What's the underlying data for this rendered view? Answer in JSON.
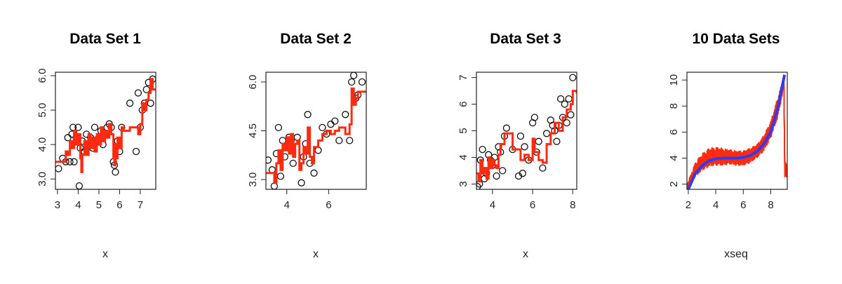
{
  "colors": {
    "fit": "#ff2a10",
    "mean": "#2b3df0",
    "points": "#111111",
    "axis": "#222222"
  },
  "chart_data": [
    {
      "type": "scatter",
      "title": "Data Set 1",
      "xlabel": "x",
      "ylabel": "",
      "xlim": [
        2.9,
        7.75
      ],
      "ylim": [
        2.7,
        6.1
      ],
      "xticks": [
        3,
        4,
        5,
        6,
        7
      ],
      "yticks": [
        3.0,
        4.0,
        5.0,
        6.0
      ],
      "ytick_labels": [
        "3.0",
        "4.0",
        "5.0",
        "6.0"
      ],
      "series": [
        {
          "kind": "points",
          "x": [
            3.05,
            3.25,
            3.4,
            3.5,
            3.6,
            3.7,
            3.75,
            3.8,
            3.9,
            4.0,
            4.05,
            4.1,
            4.2,
            4.3,
            4.4,
            4.5,
            4.6,
            4.7,
            4.8,
            5.0,
            5.1,
            5.2,
            5.4,
            5.5,
            5.6,
            5.7,
            5.75,
            5.8,
            5.9,
            6.0,
            6.1,
            6.5,
            6.8,
            6.9,
            7.0,
            7.1,
            7.2,
            7.3,
            7.4,
            7.5,
            7.6
          ],
          "y": [
            3.3,
            3.6,
            3.5,
            4.2,
            3.5,
            4.3,
            4.5,
            3.5,
            4.2,
            4.5,
            2.8,
            3.9,
            4.1,
            3.8,
            4.3,
            4.0,
            4.2,
            3.9,
            4.5,
            4.2,
            4.4,
            4.0,
            4.5,
            4.6,
            4.5,
            3.5,
            3.4,
            3.2,
            4.1,
            3.8,
            4.5,
            5.2,
            3.8,
            5.5,
            4.5,
            5.0,
            5.2,
            5.6,
            5.8,
            5.2,
            5.9
          ]
        },
        {
          "kind": "step",
          "x": [
            2.9,
            3.3,
            3.4,
            3.5,
            3.6,
            3.7,
            3.8,
            3.9,
            4.0,
            4.1,
            4.15,
            4.2,
            4.3,
            4.4,
            4.5,
            4.6,
            4.7,
            4.8,
            4.9,
            5.0,
            5.1,
            5.2,
            5.3,
            5.4,
            5.5,
            5.6,
            5.7,
            5.75,
            5.8,
            5.85,
            5.9,
            6.0,
            6.1,
            6.2,
            6.5,
            6.9,
            7.0,
            7.1,
            7.2,
            7.3,
            7.4,
            7.5,
            7.6,
            7.75
          ],
          "y": [
            3.5,
            3.5,
            3.8,
            3.7,
            4.1,
            3.9,
            4.4,
            4.0,
            4.3,
            3.6,
            3.2,
            3.7,
            4.1,
            3.7,
            4.3,
            3.9,
            4.2,
            3.8,
            4.3,
            4.0,
            4.5,
            4.1,
            4.4,
            4.2,
            4.6,
            4.3,
            3.6,
            3.4,
            4.0,
            3.6,
            4.2,
            3.9,
            4.5,
            4.4,
            4.5,
            4.3,
            4.6,
            5.2,
            5.0,
            5.3,
            5.5,
            5.9,
            5.6,
            5.6
          ]
        }
      ]
    },
    {
      "type": "scatter",
      "title": "Data Set 2",
      "xlabel": "x",
      "ylabel": "",
      "xlim": [
        3.0,
        7.8
      ],
      "ylim": [
        2.7,
        6.3
      ],
      "xticks": [
        4,
        6
      ],
      "yticks": [
        3.0,
        4.5,
        6.0
      ],
      "ytick_labels": [
        "3.0",
        "4.5",
        "6.0"
      ],
      "series": [
        {
          "kind": "points",
          "x": [
            3.1,
            3.3,
            3.4,
            3.5,
            3.6,
            3.7,
            3.8,
            3.9,
            4.1,
            4.2,
            4.3,
            4.5,
            4.7,
            4.8,
            4.9,
            5.0,
            5.1,
            5.3,
            5.5,
            5.7,
            5.9,
            6.1,
            6.3,
            6.5,
            6.8,
            7.0,
            7.1,
            7.2,
            7.3,
            7.4,
            7.6
          ],
          "y": [
            3.6,
            3.3,
            2.8,
            3.8,
            4.6,
            3.1,
            4.2,
            3.7,
            4.3,
            4.2,
            3.5,
            4.3,
            2.9,
            3.7,
            4.1,
            5.0,
            3.5,
            3.2,
            3.9,
            4.6,
            4.4,
            4.7,
            4.8,
            4.2,
            5.0,
            4.2,
            6.0,
            6.2,
            5.5,
            5.6,
            6.0
          ]
        },
        {
          "kind": "step",
          "x": [
            3.0,
            3.3,
            3.4,
            3.5,
            3.6,
            3.7,
            3.8,
            3.9,
            4.0,
            4.1,
            4.2,
            4.3,
            4.4,
            4.5,
            4.6,
            4.7,
            4.8,
            4.9,
            5.0,
            5.1,
            5.2,
            5.3,
            5.5,
            5.7,
            5.9,
            6.1,
            6.3,
            6.5,
            6.8,
            7.0,
            7.1,
            7.2,
            7.3,
            7.4,
            7.6,
            7.8
          ],
          "y": [
            3.2,
            3.2,
            2.9,
            3.5,
            3.9,
            3.3,
            4.1,
            3.9,
            4.3,
            3.8,
            4.4,
            3.7,
            4.1,
            4.2,
            3.3,
            3.5,
            4.0,
            3.8,
            4.6,
            3.7,
            3.5,
            4.0,
            4.2,
            4.4,
            4.5,
            4.4,
            4.5,
            4.6,
            4.4,
            4.7,
            5.8,
            5.3,
            5.5,
            5.7,
            5.7,
            5.7
          ]
        }
      ]
    },
    {
      "type": "scatter",
      "title": "Data Set 3",
      "xlabel": "x",
      "ylabel": "",
      "xlim": [
        3.2,
        8.2
      ],
      "ylim": [
        2.8,
        7.2
      ],
      "xticks": [
        4,
        6,
        8
      ],
      "yticks": [
        3,
        4,
        5,
        6,
        7
      ],
      "ytick_labels": [
        "3",
        "4",
        "5",
        "6",
        "7"
      ],
      "series": [
        {
          "kind": "points",
          "x": [
            3.25,
            3.35,
            3.4,
            3.5,
            3.6,
            3.7,
            3.8,
            3.9,
            4.0,
            4.1,
            4.2,
            4.3,
            4.4,
            4.5,
            4.6,
            4.7,
            5.0,
            5.3,
            5.4,
            5.5,
            5.6,
            5.8,
            6.0,
            6.1,
            6.2,
            6.3,
            6.5,
            6.7,
            6.9,
            7.0,
            7.1,
            7.2,
            7.3,
            7.4,
            7.5,
            7.6,
            7.7,
            7.8,
            7.9,
            8.0
          ],
          "y": [
            2.9,
            3.0,
            3.9,
            4.3,
            3.2,
            3.4,
            4.1,
            3.9,
            3.7,
            4.0,
            3.3,
            4.4,
            4.2,
            3.5,
            4.8,
            5.1,
            4.3,
            3.3,
            4.8,
            3.4,
            4.4,
            3.9,
            5.3,
            5.5,
            4.2,
            4.6,
            3.6,
            4.9,
            5.4,
            5.2,
            5.0,
            4.6,
            5.2,
            6.2,
            5.5,
            6.0,
            5.3,
            6.2,
            5.6,
            7.0
          ]
        },
        {
          "kind": "step",
          "x": [
            3.2,
            3.3,
            3.4,
            3.5,
            3.6,
            3.7,
            3.8,
            3.9,
            4.0,
            4.1,
            4.2,
            4.3,
            4.4,
            4.6,
            4.8,
            5.0,
            5.2,
            5.4,
            5.6,
            5.8,
            6.0,
            6.1,
            6.3,
            6.5,
            6.7,
            6.9,
            7.1,
            7.3,
            7.5,
            7.7,
            7.9,
            8.0,
            8.2
          ],
          "y": [
            3.4,
            3.1,
            3.9,
            3.4,
            3.6,
            3.2,
            4.0,
            3.6,
            3.9,
            3.7,
            3.6,
            4.1,
            4.5,
            4.9,
            4.9,
            4.3,
            4.3,
            3.9,
            4.1,
            3.9,
            4.7,
            4.2,
            3.9,
            3.8,
            4.5,
            4.9,
            5.3,
            5.0,
            5.5,
            5.8,
            6.0,
            6.5,
            6.4
          ]
        }
      ]
    },
    {
      "type": "line",
      "title": "10 Data Sets",
      "xlabel": "xseq",
      "ylabel": "",
      "xlim": [
        1.9,
        9.2
      ],
      "ylim": [
        1.6,
        10.6
      ],
      "xticks": [
        2,
        4,
        6,
        8
      ],
      "yticks": [
        2,
        4,
        6,
        8,
        10
      ],
      "ytick_labels": [
        "2",
        "4",
        "6",
        "8",
        "10"
      ],
      "series": [
        {
          "kind": "band",
          "x": [
            2.0,
            2.5,
            3.0,
            3.5,
            4.0,
            4.5,
            5.0,
            5.5,
            6.0,
            6.5,
            7.0,
            7.5,
            8.0,
            8.5,
            9.0
          ],
          "ymin": [
            1.6,
            2.5,
            3.0,
            3.3,
            3.4,
            3.4,
            3.5,
            3.4,
            3.4,
            3.6,
            4.0,
            4.5,
            5.5,
            7.0,
            9.6
          ],
          "ymax": [
            2.2,
            3.7,
            4.4,
            4.8,
            4.9,
            4.8,
            4.7,
            4.6,
            4.6,
            4.8,
            5.1,
            5.8,
            6.9,
            8.7,
            10.5
          ]
        },
        {
          "kind": "line",
          "x": [
            2.0,
            2.5,
            3.0,
            3.5,
            4.0,
            4.5,
            5.0,
            5.5,
            6.0,
            6.5,
            7.0,
            7.5,
            8.0,
            8.5,
            9.0
          ],
          "y": [
            1.6,
            2.8,
            3.4,
            3.8,
            3.95,
            4.0,
            4.0,
            4.0,
            4.05,
            4.2,
            4.5,
            5.1,
            6.0,
            7.8,
            10.4
          ]
        }
      ]
    }
  ]
}
